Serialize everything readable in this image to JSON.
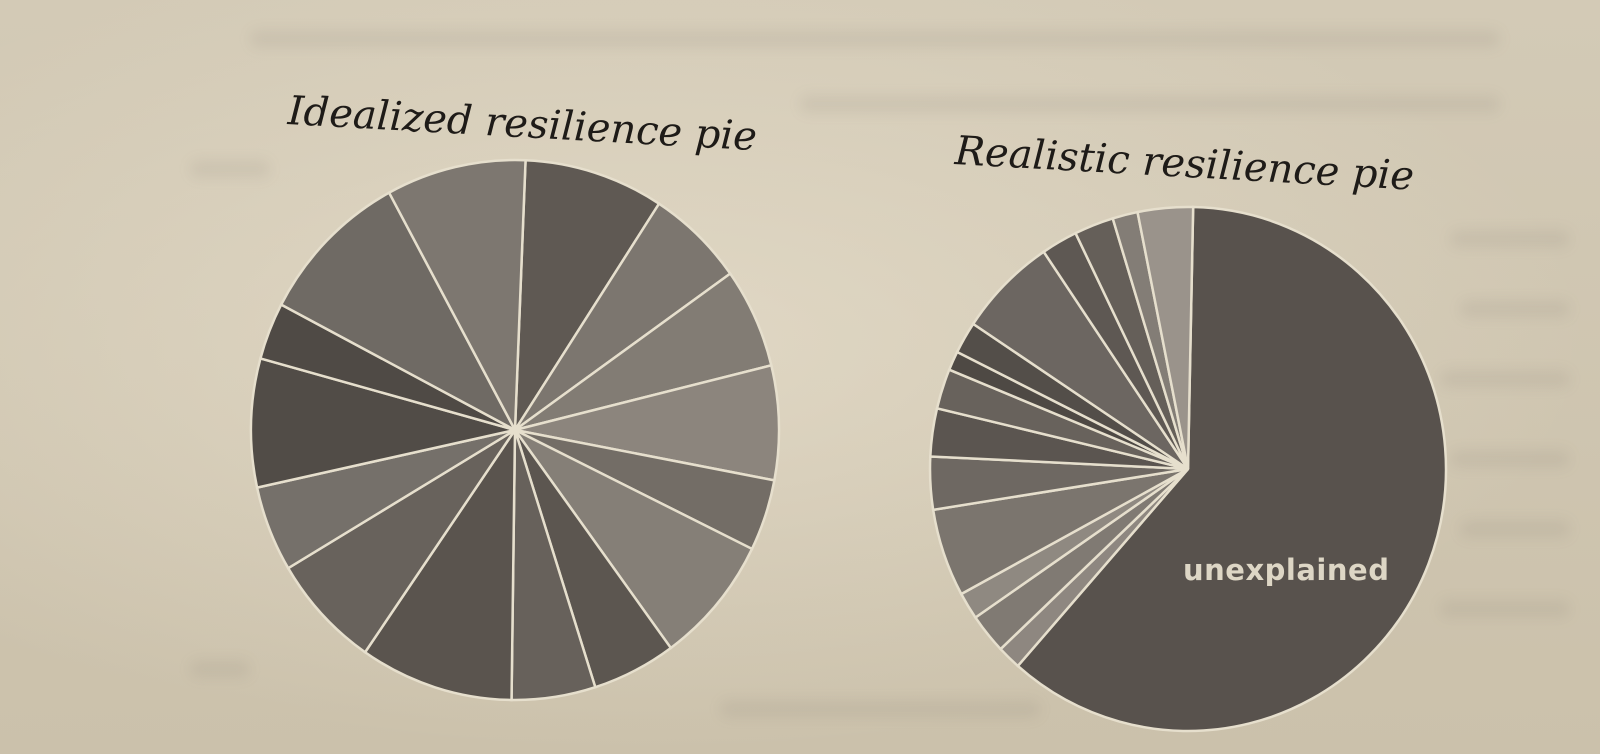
{
  "chart_data": [
    {
      "type": "pie",
      "title": "Idealized resilience pie",
      "slices": [
        {
          "value": 10,
          "color": "#5f5953"
        },
        {
          "value": 7,
          "color": "#7c766f"
        },
        {
          "value": 7,
          "color": "#827c74"
        },
        {
          "value": 8,
          "color": "#8c857d"
        },
        {
          "value": 5,
          "color": "#736d66"
        },
        {
          "value": 9,
          "color": "#857f77"
        },
        {
          "value": 6,
          "color": "#5c5650"
        },
        {
          "value": 6,
          "color": "#67615b"
        },
        {
          "value": 11,
          "color": "#5a544e"
        },
        {
          "value": 8,
          "color": "#68625c"
        },
        {
          "value": 6,
          "color": "#75706a"
        },
        {
          "value": 9,
          "color": "#514c47"
        },
        {
          "value": 4,
          "color": "#4f4a45"
        },
        {
          "value": 11,
          "color": "#6f6a64"
        },
        {
          "value": 10,
          "color": "#7d7770"
        }
      ]
    },
    {
      "type": "pie",
      "title": "Realistic resilience pie",
      "label": "unexplained",
      "slices": [
        {
          "value": 62,
          "color": "#58524d",
          "label": "unexplained"
        },
        {
          "value": 1.5,
          "color": "#8e8780"
        },
        {
          "value": 2.5,
          "color": "#807a73"
        },
        {
          "value": 1.7,
          "color": "#8f8981"
        },
        {
          "value": 5.5,
          "color": "#7b756e"
        },
        {
          "value": 3.3,
          "color": "#6e6862"
        },
        {
          "value": 3,
          "color": "#5b5550"
        },
        {
          "value": 2.5,
          "color": "#68625c"
        },
        {
          "value": 1.2,
          "color": "#4e4944"
        },
        {
          "value": 2,
          "color": "#534e49"
        },
        {
          "value": 6.3,
          "color": "#6c6661"
        },
        {
          "value": 2.3,
          "color": "#5e5853"
        },
        {
          "value": 2.5,
          "color": "#655f59"
        },
        {
          "value": 1.6,
          "color": "#837d76"
        },
        {
          "value": 3.5,
          "color": "#9a938b"
        }
      ]
    }
  ]
}
